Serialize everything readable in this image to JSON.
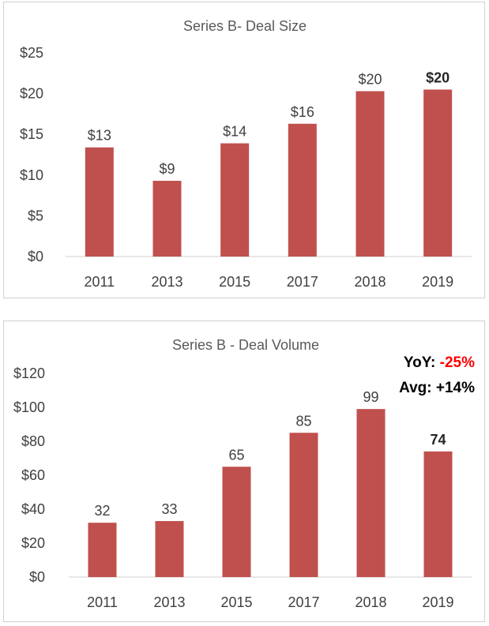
{
  "chart_data": [
    {
      "type": "bar",
      "title": "Series B- Deal Size",
      "categories": [
        "2011",
        "2013",
        "2015",
        "2017",
        "2018",
        "2019"
      ],
      "values": [
        13.4,
        9.3,
        13.9,
        16.3,
        20.3,
        20.5
      ],
      "data_labels": [
        "$13",
        "$9",
        "$14",
        "$16",
        "$20",
        "$20"
      ],
      "bold_label_index": 5,
      "yticks": [
        "$0",
        "$5",
        "$10",
        "$15",
        "$20",
        "$25"
      ],
      "ylim": [
        0,
        25
      ],
      "ystep": 5,
      "bar_color": "#c0504d",
      "grid": false,
      "legend": "none"
    },
    {
      "type": "bar",
      "title": "Series B - Deal Volume",
      "categories": [
        "2011",
        "2013",
        "2015",
        "2017",
        "2018",
        "2019"
      ],
      "values": [
        32,
        33,
        65,
        85,
        99,
        74
      ],
      "data_labels": [
        "32",
        "33",
        "65",
        "85",
        "99",
        "74"
      ],
      "bold_label_index": 5,
      "yticks": [
        "$0",
        "$20",
        "$40",
        "$60",
        "$80",
        "$100",
        "$120"
      ],
      "ylim": [
        0,
        120
      ],
      "ystep": 20,
      "bar_color": "#c0504d",
      "grid": false,
      "legend": "none",
      "annotations": {
        "yoy_label": "YoY: ",
        "yoy_value": "-25%",
        "yoy_value_color": "#ff0000",
        "avg_label": "Avg: ",
        "avg_value": "+14%"
      }
    }
  ]
}
